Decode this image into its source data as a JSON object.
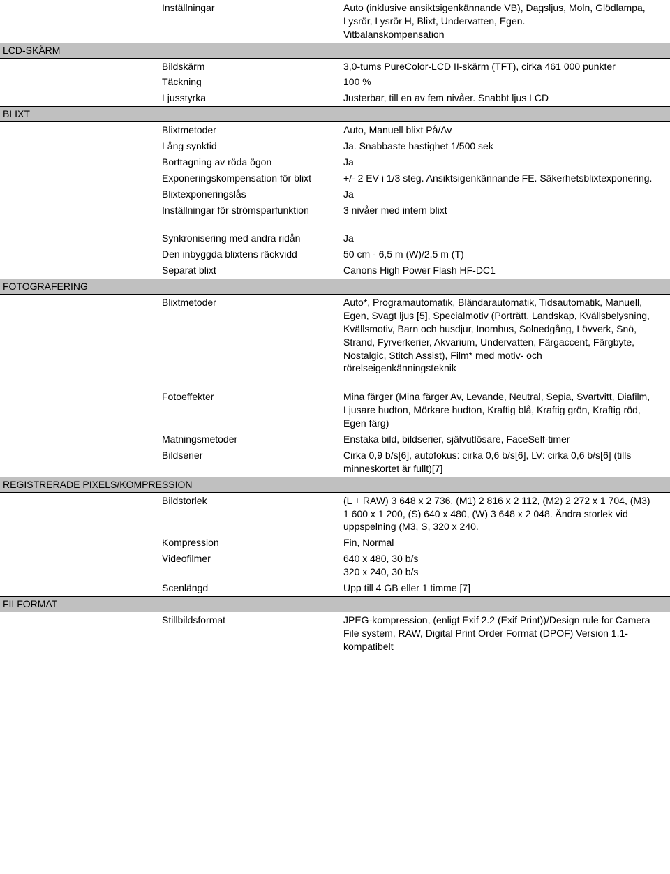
{
  "top": {
    "settings_label": "Inställningar",
    "settings_value": "Auto (inklusive ansiktsigenkännande VB), Dagsljus, Moln, Glödlampa, Lysrör, Lysrör H, Blixt, Undervatten, Egen.\nVitbalanskompensation"
  },
  "lcd": {
    "header": "LCD-SKÄRM",
    "rows": [
      {
        "label": "Bildskärm",
        "value": "3,0-tums PureColor-LCD II-skärm (TFT), cirka 461 000 punkter"
      },
      {
        "label": "Täckning",
        "value": "100 %"
      },
      {
        "label": "Ljusstyrka",
        "value": "Justerbar, till en av fem nivåer. Snabbt ljus LCD"
      }
    ]
  },
  "blixt": {
    "header": "BLIXT",
    "rows_a": [
      {
        "label": "Blixtmetoder",
        "value": "Auto, Manuell blixt På/Av"
      },
      {
        "label": "Lång synktid",
        "value": "Ja. Snabbaste hastighet 1/500 sek"
      },
      {
        "label": "Borttagning av röda ögon",
        "value": "Ja"
      },
      {
        "label": "Exponeringskompensation för blixt",
        "value": "+/- 2 EV i 1/3 steg. Ansiktsigenkännande FE. Säkerhetsblixtexponering."
      },
      {
        "label": "Blixtexponeringslås",
        "value": "Ja"
      },
      {
        "label": "Inställningar för strömsparfunktion",
        "value": "3 nivåer med intern blixt"
      }
    ],
    "rows_b": [
      {
        "label": "Synkronisering med andra ridån",
        "value": "Ja"
      },
      {
        "label": "Den inbyggda blixtens räckvidd",
        "value": "50 cm - 6,5 m (W)/2,5 m (T)"
      },
      {
        "label": "Separat blixt",
        "value": "Canons High Power Flash HF-DC1"
      }
    ]
  },
  "foto": {
    "header": "FOTOGRAFERING",
    "rows_a": [
      {
        "label": "Blixtmetoder",
        "value": "Auto*, Programautomatik, Bländarautomatik, Tidsautomatik, Manuell, Egen, Svagt ljus [5], Specialmotiv (Porträtt, Landskap, Kvällsbelysning, Kvällsmotiv, Barn och husdjur, Inomhus, Solnedgång, Lövverk, Snö, Strand, Fyrverkerier, Akvarium, Undervatten, Färgaccent, Färgbyte, Nostalgic, Stitch Assist), Film* med motiv- och rörelseigenkänningsteknik"
      }
    ],
    "rows_b": [
      {
        "label": "Fotoeffekter",
        "value": "Mina färger (Mina färger Av, Levande, Neutral, Sepia, Svartvitt, Diafilm, Ljusare hudton, Mörkare hudton, Kraftig blå, Kraftig grön, Kraftig röd, Egen färg)"
      },
      {
        "label": "Matningsmetoder",
        "value": "Enstaka bild, bildserier, självutlösare, FaceSelf-timer"
      },
      {
        "label": "Bildserier",
        "value": "Cirka 0,9 b/s[6], autofokus: cirka 0,6 b/s[6], LV: cirka 0,6 b/s[6] (tills minneskortet är fullt)[7]"
      }
    ]
  },
  "pixels": {
    "header": "REGISTRERADE PIXELS/KOMPRESSION",
    "rows": [
      {
        "label": "Bildstorlek",
        "value": "(L + RAW) 3 648 x 2 736, (M1) 2 816 x 2 112, (M2) 2 272 x 1 704, (M3) 1 600 x 1 200, (S) 640 x 480, (W) 3 648 x 2 048. Ändra storlek vid uppspelning (M3, S, 320 x 240."
      },
      {
        "label": "Kompression",
        "value": "Fin, Normal"
      },
      {
        "label": "Videofilmer",
        "value": "640 x 480, 30 b/s\n320 x 240, 30 b/s"
      },
      {
        "label": "Scenlängd",
        "value": "Upp till 4 GB eller 1 timme [7]"
      }
    ]
  },
  "filformat": {
    "header": "FILFORMAT",
    "rows": [
      {
        "label": "Stillbildsformat",
        "value": "JPEG-kompression, (enligt Exif 2.2 (Exif Print))/Design rule for Camera File system, RAW, Digital Print Order Format (DPOF) Version 1.1-kompatibelt"
      }
    ]
  }
}
